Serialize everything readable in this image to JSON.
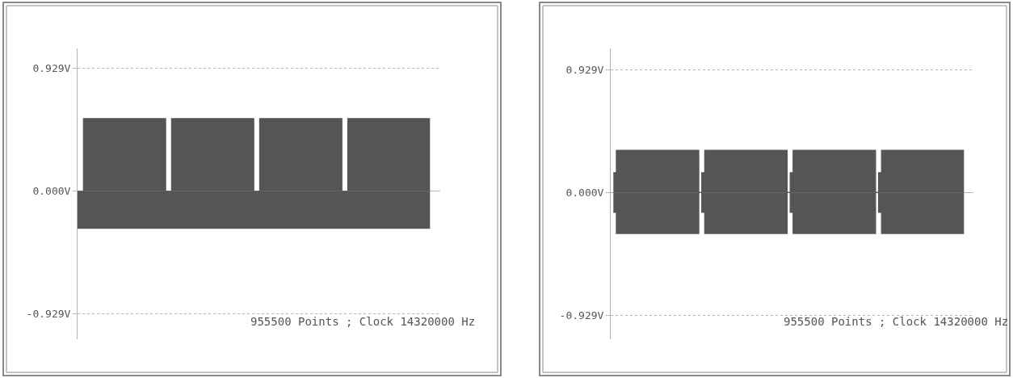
{
  "chart_data": [
    {
      "type": "area",
      "categories": [
        null,
        null,
        null,
        null,
        null,
        null,
        null,
        null,
        null,
        null,
        null,
        null,
        null,
        null,
        null,
        null,
        null,
        null,
        null,
        null,
        null,
        null,
        null,
        null,
        null,
        null,
        null,
        null,
        null,
        null,
        null,
        null,
        null,
        null,
        null,
        null,
        null,
        null,
        null,
        null,
        null,
        null,
        null,
        null,
        null,
        null,
        null,
        null,
        null,
        null,
        null,
        null,
        null,
        null,
        null,
        null,
        null,
        null,
        null,
        null,
        null
      ],
      "series": [
        {
          "color": "#555555",
          "values": [
            0,
            0.55,
            0.55,
            0.55,
            0.55,
            0.55,
            0.55,
            0.55,
            0.55,
            0.55,
            0.55,
            0.55,
            0.55,
            0.55,
            0.55,
            0,
            0.55,
            0.55,
            0.55,
            0.55,
            0.55,
            0.55,
            0.55,
            0.55,
            0.55,
            0.55,
            0.55,
            0.55,
            0.55,
            0.55,
            0,
            0.55,
            0.55,
            0.55,
            0.55,
            0.55,
            0.55,
            0.55,
            0.55,
            0.55,
            0.55,
            0.55,
            0.55,
            0.55,
            0.55,
            0,
            0.55,
            0.55,
            0.55,
            0.55,
            0.55,
            0.55,
            0.55,
            0.55,
            0.55,
            0.55,
            0.55,
            0.55,
            0.55,
            0.55,
            0.55
          ]
        },
        {
          "color": "#555555",
          "values": [
            -0.28,
            -0.28,
            -0.28,
            -0.28,
            -0.28,
            -0.28,
            -0.28,
            -0.28,
            -0.28,
            -0.28,
            -0.28,
            -0.28,
            -0.28,
            -0.28,
            -0.28,
            -0.28,
            -0.28,
            -0.28,
            -0.28,
            -0.28,
            -0.28,
            -0.28,
            -0.28,
            -0.28,
            -0.28,
            -0.28,
            -0.28,
            -0.28,
            -0.28,
            -0.28,
            -0.28,
            -0.28,
            -0.28,
            -0.28,
            -0.28,
            -0.28,
            -0.28,
            -0.28,
            -0.28,
            -0.28,
            -0.28,
            -0.28,
            -0.28,
            -0.28,
            -0.28,
            -0.28,
            -0.28,
            -0.28,
            -0.28,
            -0.28,
            -0.28,
            -0.28,
            -0.28,
            -0.28,
            -0.28,
            -0.28,
            -0.28,
            -0.28,
            -0.28,
            -0.28,
            -0.28
          ]
        }
      ],
      "ylim": [
        -1.12,
        1.08
      ],
      "yticks": [
        {
          "value": 0.929,
          "label": "0.929V"
        },
        {
          "value": 0,
          "label": "0.000V"
        },
        {
          "value": -0.929,
          "label": "-0.929V"
        }
      ],
      "tick_labels": "y",
      "grid": "y",
      "marker": "none",
      "annotations": [
        "955500 Points ; Clock 14320000 Hz"
      ]
    },
    {
      "type": "area",
      "categories": [
        null,
        null,
        null,
        null,
        null,
        null,
        null,
        null,
        null,
        null,
        null,
        null,
        null,
        null,
        null,
        null,
        null,
        null,
        null,
        null,
        null,
        null,
        null,
        null,
        null,
        null,
        null,
        null,
        null,
        null,
        null,
        null,
        null,
        null,
        null,
        null,
        null,
        null,
        null,
        null,
        null,
        null,
        null,
        null,
        null,
        null,
        null,
        null,
        null,
        null,
        null,
        null,
        null,
        null,
        null,
        null,
        null,
        null,
        null,
        null,
        null,
        null,
        null,
        null,
        null,
        null,
        null,
        null,
        null,
        null,
        null,
        null,
        null,
        null,
        null,
        null,
        null,
        null,
        null,
        null,
        null,
        null,
        null,
        null,
        null,
        null,
        null,
        null,
        null,
        null,
        null,
        null,
        null,
        null,
        null,
        null,
        null,
        null,
        null,
        null,
        null,
        null,
        null,
        null,
        null,
        null,
        null,
        null,
        null,
        null,
        null,
        null,
        null,
        null,
        null,
        null,
        null,
        null,
        null,
        null
      ],
      "series": [
        {
          "color": "#555555",
          "values": [
            0.15,
            0.32,
            0.32,
            0.32,
            0.32,
            0.32,
            0.32,
            0.32,
            0.32,
            0.32,
            0.32,
            0.32,
            0.32,
            0.32,
            0.32,
            0.32,
            0.32,
            0.32,
            0.32,
            0.32,
            0.32,
            0.32,
            0.32,
            0.32,
            0.32,
            0.32,
            0.32,
            0.32,
            0.32,
            0,
            0.15,
            0.32,
            0.32,
            0.32,
            0.32,
            0.32,
            0.32,
            0.32,
            0.32,
            0.32,
            0.32,
            0.32,
            0.32,
            0.32,
            0.32,
            0.32,
            0.32,
            0.32,
            0.32,
            0.32,
            0.32,
            0.32,
            0.32,
            0.32,
            0.32,
            0.32,
            0.32,
            0.32,
            0.32,
            0,
            0.15,
            0.32,
            0.32,
            0.32,
            0.32,
            0.32,
            0.32,
            0.32,
            0.32,
            0.32,
            0.32,
            0.32,
            0.32,
            0.32,
            0.32,
            0.32,
            0.32,
            0.32,
            0.32,
            0.32,
            0.32,
            0.32,
            0.32,
            0.32,
            0.32,
            0.32,
            0.32,
            0.32,
            0.32,
            0,
            0.15,
            0.32,
            0.32,
            0.32,
            0.32,
            0.32,
            0.32,
            0.32,
            0.32,
            0.32,
            0.32,
            0.32,
            0.32,
            0.32,
            0.32,
            0.32,
            0.32,
            0.32,
            0.32,
            0.32,
            0.32,
            0.32,
            0.32,
            0.32,
            0.32,
            0.32,
            0.32,
            0.32,
            0.32,
            0.32
          ]
        },
        {
          "color": "#555555",
          "values": [
            -0.15,
            -0.31,
            -0.31,
            -0.31,
            -0.31,
            -0.31,
            -0.31,
            -0.31,
            -0.31,
            -0.31,
            -0.31,
            -0.31,
            -0.31,
            -0.31,
            -0.31,
            -0.31,
            -0.31,
            -0.31,
            -0.31,
            -0.31,
            -0.31,
            -0.31,
            -0.31,
            -0.31,
            -0.31,
            -0.31,
            -0.31,
            -0.31,
            -0.31,
            0,
            -0.15,
            -0.31,
            -0.31,
            -0.31,
            -0.31,
            -0.31,
            -0.31,
            -0.31,
            -0.31,
            -0.31,
            -0.31,
            -0.31,
            -0.31,
            -0.31,
            -0.31,
            -0.31,
            -0.31,
            -0.31,
            -0.31,
            -0.31,
            -0.31,
            -0.31,
            -0.31,
            -0.31,
            -0.31,
            -0.31,
            -0.31,
            -0.31,
            -0.31,
            0,
            -0.15,
            -0.31,
            -0.31,
            -0.31,
            -0.31,
            -0.31,
            -0.31,
            -0.31,
            -0.31,
            -0.31,
            -0.31,
            -0.31,
            -0.31,
            -0.31,
            -0.31,
            -0.31,
            -0.31,
            -0.31,
            -0.31,
            -0.31,
            -0.31,
            -0.31,
            -0.31,
            -0.31,
            -0.31,
            -0.31,
            -0.31,
            -0.31,
            -0.31,
            0,
            -0.15,
            -0.31,
            -0.31,
            -0.31,
            -0.31,
            -0.31,
            -0.31,
            -0.31,
            -0.31,
            -0.31,
            -0.31,
            -0.31,
            -0.31,
            -0.31,
            -0.31,
            -0.31,
            -0.31,
            -0.31,
            -0.31,
            -0.31,
            -0.31,
            -0.31,
            -0.31,
            -0.31,
            -0.31,
            -0.31,
            -0.31,
            -0.31,
            -0.31,
            -0.31
          ]
        }
      ],
      "ylim": [
        -1.11,
        1.09
      ],
      "yticks": [
        {
          "value": 0.929,
          "label": "0.929V"
        },
        {
          "value": 0,
          "label": "0.000V"
        },
        {
          "value": -0.929,
          "label": "-0.929V"
        }
      ],
      "tick_labels": "y",
      "grid": "y",
      "marker": "none",
      "annotations": [
        "955500 Points ; Clock 14320000 Hz"
      ]
    }
  ]
}
